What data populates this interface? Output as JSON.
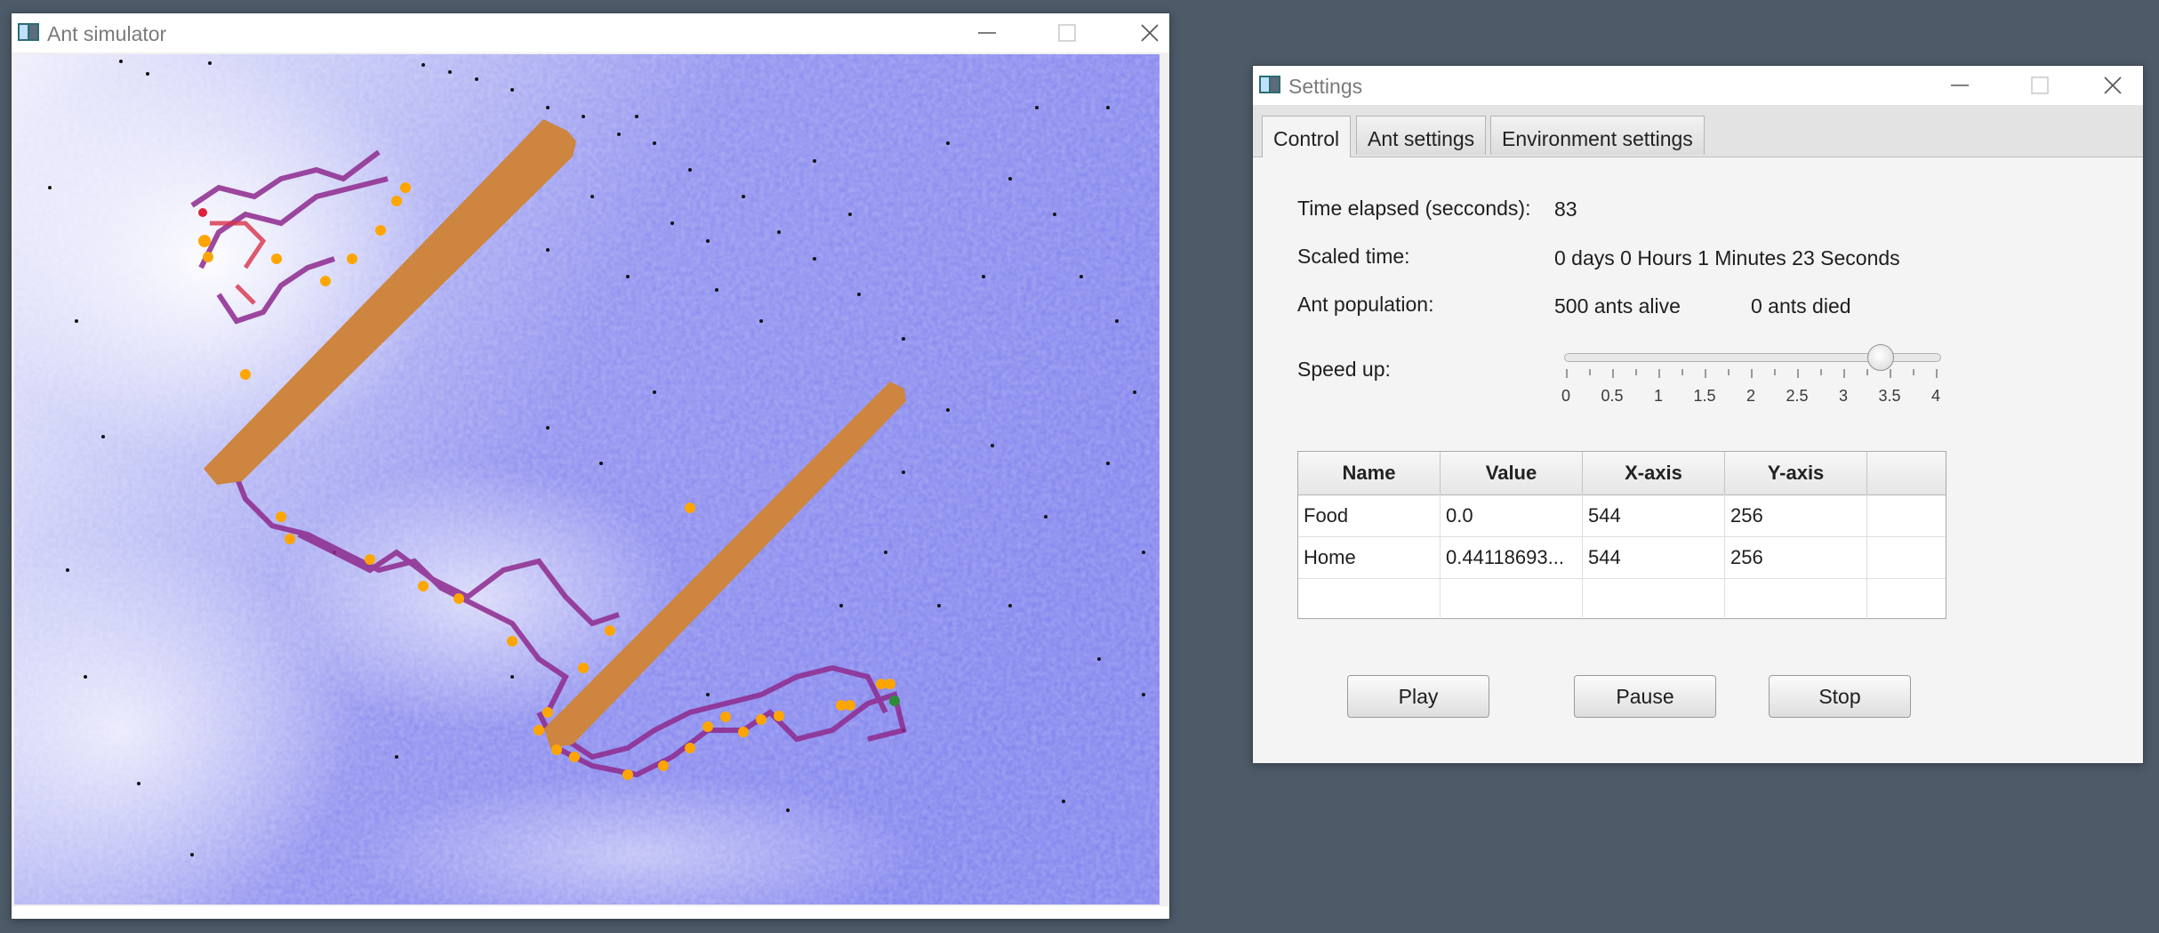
{
  "sim_window": {
    "title": "Ant simulator",
    "icon": "app-icon",
    "controls": [
      "minimize-icon",
      "maximize-icon",
      "close-icon"
    ]
  },
  "settings_window": {
    "title": "Settings",
    "icon": "app-icon",
    "tabs": [
      "Control",
      "Ant settings",
      "Environment settings"
    ],
    "active_tab": "Control",
    "time_elapsed": {
      "label": "Time elapsed (secconds):",
      "value": "83"
    },
    "scaled_time": {
      "label": "Scaled time:",
      "value": "0 days 0 Hours 1 Minutes 23 Seconds"
    },
    "population": {
      "label": "Ant population:",
      "alive": "500 ants alive",
      "died": "0 ants died"
    },
    "speed_up": {
      "label": "Speed up:",
      "value": 3.4,
      "min": 0,
      "max": 4,
      "tick_labels": [
        "0",
        "0.5",
        "1",
        "1.5",
        "2",
        "2.5",
        "3",
        "3.5",
        "4"
      ]
    },
    "table": {
      "headers": [
        "Name",
        "Value",
        "X-axis",
        "Y-axis",
        ""
      ],
      "rows": [
        [
          "Food",
          "0.0",
          "544",
          "256",
          ""
        ],
        [
          "Home",
          "0.44118693...",
          "544",
          "256",
          ""
        ],
        [
          "",
          "",
          "",
          "",
          ""
        ]
      ]
    },
    "buttons": {
      "play": "Play",
      "pause": "Pause",
      "stop": "Stop"
    }
  },
  "colors": {
    "desktop": "#4d5a68",
    "pheromone_field": "#8c8cf0",
    "food": "#cd853f",
    "trail": "#8e2a8e",
    "ants": "#ffa500",
    "home": "#2e8b3a"
  }
}
